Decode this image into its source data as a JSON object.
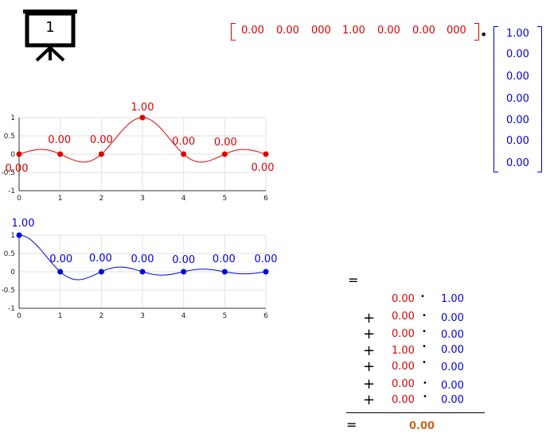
{
  "slide_number": "1",
  "row_vector": [
    "0.00",
    "0.00",
    "000",
    "1.00",
    "0.00",
    "0.00",
    "000"
  ],
  "column_vector": [
    "1.00",
    "0.00",
    "0.00",
    "0.00",
    "0.00",
    "0.00",
    "0.00"
  ],
  "dot_operator": "•",
  "chart_data": [
    {
      "type": "line",
      "x": [
        0,
        1,
        2,
        3,
        4,
        5,
        6
      ],
      "values": [
        0,
        0,
        0,
        1,
        0,
        0,
        0
      ],
      "point_labels": [
        "0.00",
        "0.00",
        "0.00",
        "1.00",
        "0.00",
        "0.00",
        "0.00"
      ],
      "xlim": [
        0,
        6
      ],
      "ylim": [
        -1,
        1
      ],
      "xticks": [
        "0",
        "1",
        "2",
        "3",
        "4",
        "5",
        "6"
      ],
      "yticks": [
        "1",
        "0.5",
        "0",
        "-0.5",
        "-1"
      ],
      "grid": true,
      "color": "#e00000"
    },
    {
      "type": "line",
      "x": [
        0,
        1,
        2,
        3,
        4,
        5,
        6
      ],
      "values": [
        1,
        0,
        0,
        0,
        0,
        0,
        0
      ],
      "point_labels": [
        "1.00",
        "0.00",
        "0.00",
        "0.00",
        "0.00",
        "0.00",
        "0.00"
      ],
      "xlim": [
        0,
        6
      ],
      "ylim": [
        -1,
        1
      ],
      "xticks": [
        "0",
        "1",
        "2",
        "3",
        "4",
        "5",
        "6"
      ],
      "yticks": [
        "1",
        "0.5",
        "0",
        "-0.5",
        "-1"
      ],
      "grid": true,
      "color": "#0000e6"
    }
  ],
  "sum": {
    "equals": "=",
    "plus": "+",
    "terms": [
      {
        "a": "0.00",
        "b": "1.00"
      },
      {
        "a": "0.00",
        "b": "0.00"
      },
      {
        "a": "0.00",
        "b": "0.00"
      },
      {
        "a": "1.00",
        "b": "0.00"
      },
      {
        "a": "0.00",
        "b": "0.00"
      },
      {
        "a": "0.00",
        "b": "0.00"
      },
      {
        "a": "0.00",
        "b": "0.00"
      }
    ],
    "result": "0.00"
  },
  "colors": {
    "red": "#e00000",
    "blue": "#0000e6",
    "result": "#c8651e"
  }
}
